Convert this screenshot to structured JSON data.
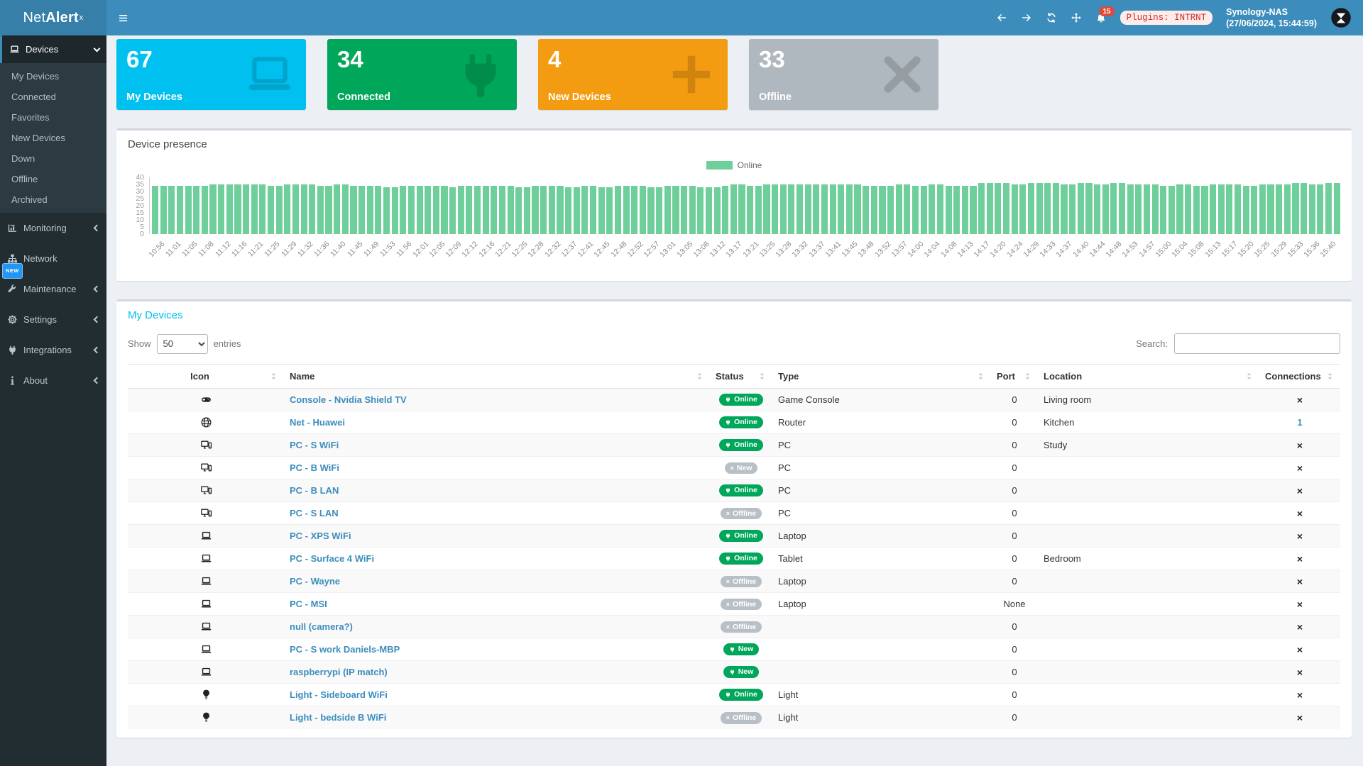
{
  "navbar": {
    "brand_light": "Net",
    "brand_bold": "Alert",
    "brand_sup": "x",
    "menu_icon": "hamburger-icon",
    "icons": [
      "arrow-left-icon",
      "arrow-right-icon",
      "refresh-icon",
      "move-icon"
    ],
    "bell_icon": "bell-icon",
    "notification_count": "15",
    "plugins_badge": "Plugins: INTRNT",
    "host": "Synology-NAS",
    "host_time": "(27/06/2024, 15:44:59)",
    "avatar_icon": "avatar-logo-icon"
  },
  "sidebar": {
    "sections": [
      {
        "label": "Devices",
        "icon": "laptop-icon",
        "chevron": "down",
        "active": true,
        "children": [
          "My Devices",
          "Connected",
          "Favorites",
          "New Devices",
          "Down",
          "Offline",
          "Archived"
        ]
      },
      {
        "label": "Monitoring",
        "icon": "chart-icon",
        "chevron": "left"
      },
      {
        "label": "Network",
        "icon": "sitemap-icon"
      },
      {
        "label": "Maintenance",
        "icon": "wrench-icon",
        "chevron": "left",
        "badge": "NEW"
      },
      {
        "label": "Settings",
        "icon": "gear-icon",
        "chevron": "left"
      },
      {
        "label": "Integrations",
        "icon": "plug-icon",
        "chevron": "left"
      },
      {
        "label": "About",
        "icon": "info-icon",
        "chevron": "left"
      }
    ]
  },
  "page": {
    "title": "Devices",
    "title_icon": "laptop-icon"
  },
  "stat_cards": [
    {
      "value": "67",
      "label": "My Devices",
      "color": "#00c0ef",
      "icon": "laptop-icon"
    },
    {
      "value": "34",
      "label": "Connected",
      "color": "#00a65a",
      "icon": "plug-icon"
    },
    {
      "value": "4",
      "label": "New Devices",
      "color": "#f39c12",
      "icon": "plus-icon"
    },
    {
      "value": "33",
      "label": "Offline",
      "color": "#b0b8bf",
      "icon": "x-icon"
    }
  ],
  "chart_data": {
    "type": "bar",
    "title": "Device presence",
    "legend_position": "top-center",
    "grid": false,
    "bars_per_category": 2,
    "bar_color": "#6fcf9b",
    "ylim": [
      0,
      40
    ],
    "yticks": [
      0,
      5,
      10,
      15,
      20,
      25,
      30,
      35,
      40
    ],
    "categories": [
      "10:56",
      "11:01",
      "11:05",
      "11:08",
      "11:12",
      "11:16",
      "11:21",
      "11:25",
      "11:29",
      "11:32",
      "11:36",
      "11:40",
      "11:45",
      "11:49",
      "11:53",
      "11:56",
      "12:01",
      "12:05",
      "12:09",
      "12:12",
      "12:16",
      "12:21",
      "12:25",
      "12:28",
      "12:32",
      "12:37",
      "12:41",
      "12:45",
      "12:48",
      "12:52",
      "12:57",
      "13:01",
      "13:05",
      "13:08",
      "13:12",
      "13:17",
      "13:21",
      "13:25",
      "13:28",
      "13:32",
      "13:37",
      "13:41",
      "13:45",
      "13:48",
      "13:52",
      "13:57",
      "14:00",
      "14:04",
      "14:08",
      "14:13",
      "14:17",
      "14:20",
      "14:24",
      "14:29",
      "14:33",
      "14:37",
      "14:40",
      "14:44",
      "14:48",
      "14:53",
      "14:57",
      "15:00",
      "15:04",
      "15:08",
      "15:13",
      "15:17",
      "15:20",
      "15:25",
      "15:29",
      "15:33",
      "15:36",
      "15:40"
    ],
    "series": [
      {
        "name": "Online",
        "values": [
          34,
          34,
          34,
          34,
          34,
          34,
          34,
          35,
          35,
          35,
          35,
          35,
          35,
          35,
          34,
          34,
          35,
          35,
          35,
          35,
          34,
          34,
          35,
          35,
          34,
          34,
          34,
          34,
          33,
          33,
          34,
          34,
          34,
          34,
          34,
          34,
          33,
          34,
          34,
          34,
          34,
          34,
          34,
          34,
          33,
          33,
          34,
          34,
          34,
          34,
          33,
          33,
          34,
          34,
          33,
          33,
          34,
          34,
          34,
          34,
          33,
          33,
          34,
          34,
          34,
          34,
          33,
          33,
          33,
          34,
          35,
          35,
          34,
          34,
          35,
          35,
          35,
          35,
          35,
          35,
          35,
          35,
          35,
          35,
          35,
          35,
          34,
          34,
          34,
          34,
          35,
          35,
          34,
          34,
          35,
          35,
          34,
          34,
          34,
          34,
          36,
          36,
          36,
          36,
          35,
          35,
          36,
          36,
          36,
          36,
          35,
          35,
          36,
          36,
          35,
          35,
          36,
          36,
          35,
          35,
          35,
          35,
          34,
          34,
          35,
          35,
          34,
          34,
          35,
          35,
          35,
          35,
          34,
          34,
          35,
          35,
          35,
          35,
          36,
          36,
          35,
          35,
          36,
          36
        ]
      }
    ]
  },
  "devices_box": {
    "title": "My Devices",
    "show_label": "Show",
    "page_size": "50",
    "entries_label": "entries",
    "search_label": "Search:",
    "search_value": "",
    "columns": [
      "Icon",
      "Name",
      "Status",
      "Type",
      "Port",
      "Location",
      "Connections"
    ],
    "rows": [
      {
        "icon": "gamepad-icon",
        "name": "Console - Nvidia Shield TV",
        "status": {
          "label": "Online",
          "variant": "green",
          "glyph": "plug"
        },
        "type": "Game Console",
        "port": "0",
        "location": "Living room",
        "connections": {
          "kind": "remove",
          "label": "×"
        }
      },
      {
        "icon": "globe-icon",
        "name": "Net - Huawei",
        "status": {
          "label": "Online",
          "variant": "green",
          "glyph": "plug"
        },
        "type": "Router",
        "port": "0",
        "location": "Kitchen",
        "connections": {
          "kind": "count",
          "label": "1"
        }
      },
      {
        "icon": "desktop-icon",
        "name": "PC - S WiFi",
        "status": {
          "label": "Online",
          "variant": "green",
          "glyph": "plug"
        },
        "type": "PC",
        "port": "0",
        "location": "Study",
        "connections": {
          "kind": "remove",
          "label": "×"
        }
      },
      {
        "icon": "desktop-icon",
        "name": "PC - B WiFi",
        "status": {
          "label": "New",
          "variant": "gray",
          "glyph": "x"
        },
        "type": "PC",
        "port": "0",
        "location": "",
        "connections": {
          "kind": "remove",
          "label": "×"
        }
      },
      {
        "icon": "desktop-icon",
        "name": "PC - B LAN",
        "status": {
          "label": "Online",
          "variant": "green",
          "glyph": "plug"
        },
        "type": "PC",
        "port": "0",
        "location": "",
        "connections": {
          "kind": "remove",
          "label": "×"
        }
      },
      {
        "icon": "desktop-icon",
        "name": "PC - S LAN",
        "status": {
          "label": "Offline",
          "variant": "gray",
          "glyph": "x"
        },
        "type": "PC",
        "port": "0",
        "location": "",
        "connections": {
          "kind": "remove",
          "label": "×"
        }
      },
      {
        "icon": "laptop-icon",
        "name": "PC - XPS WiFi",
        "status": {
          "label": "Online",
          "variant": "green",
          "glyph": "plug"
        },
        "type": "Laptop",
        "port": "0",
        "location": "",
        "connections": {
          "kind": "remove",
          "label": "×"
        }
      },
      {
        "icon": "laptop-icon",
        "name": "PC - Surface 4 WiFi",
        "status": {
          "label": "Online",
          "variant": "green",
          "glyph": "plug"
        },
        "type": "Tablet",
        "port": "0",
        "location": "Bedroom",
        "connections": {
          "kind": "remove",
          "label": "×"
        }
      },
      {
        "icon": "laptop-icon",
        "name": "PC - Wayne",
        "status": {
          "label": "Offline",
          "variant": "gray",
          "glyph": "x"
        },
        "type": "Laptop",
        "port": "0",
        "location": "",
        "connections": {
          "kind": "remove",
          "label": "×"
        }
      },
      {
        "icon": "laptop-icon",
        "name": "PC - MSI",
        "status": {
          "label": "Offline",
          "variant": "gray",
          "glyph": "x"
        },
        "type": "Laptop",
        "port": "None",
        "location": "",
        "connections": {
          "kind": "remove",
          "label": "×"
        }
      },
      {
        "icon": "laptop-icon",
        "name": "null (camera?)",
        "status": {
          "label": "Offline",
          "variant": "gray",
          "glyph": "x"
        },
        "type": "",
        "port": "0",
        "location": "",
        "connections": {
          "kind": "remove",
          "label": "×"
        }
      },
      {
        "icon": "laptop-icon",
        "name": "PC - S work Daniels-MBP",
        "status": {
          "label": "New",
          "variant": "green",
          "glyph": "plug"
        },
        "type": "",
        "port": "0",
        "location": "",
        "connections": {
          "kind": "remove",
          "label": "×"
        }
      },
      {
        "icon": "laptop-icon",
        "name": "raspberrypi (IP match)",
        "status": {
          "label": "New",
          "variant": "green",
          "glyph": "plug"
        },
        "type": "",
        "port": "0",
        "location": "",
        "connections": {
          "kind": "remove",
          "label": "×"
        }
      },
      {
        "icon": "lightbulb-icon",
        "name": "Light - Sideboard WiFi",
        "status": {
          "label": "Online",
          "variant": "green",
          "glyph": "plug"
        },
        "type": "Light",
        "port": "0",
        "location": "",
        "connections": {
          "kind": "remove",
          "label": "×"
        }
      },
      {
        "icon": "lightbulb-icon",
        "name": "Light - bedside B WiFi",
        "status": {
          "label": "Offline",
          "variant": "gray",
          "glyph": "x"
        },
        "type": "Light",
        "port": "0",
        "location": "",
        "connections": {
          "kind": "remove",
          "label": "×"
        }
      }
    ]
  }
}
